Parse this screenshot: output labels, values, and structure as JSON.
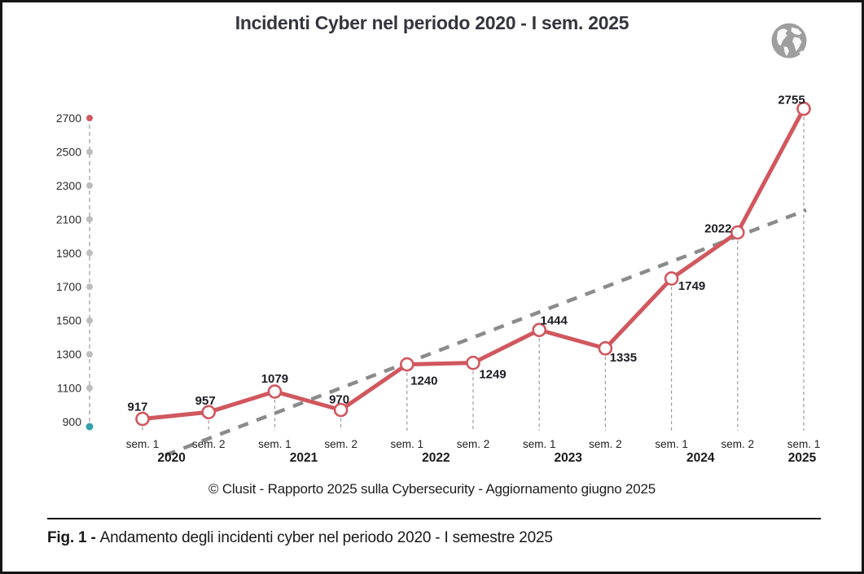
{
  "header": {
    "globe_icon": "globe-icon"
  },
  "footer": {
    "source": "© Clusit - Rapporto 2025 sulla Cybersecurity - Aggiornamento giugno 2025",
    "caption_prefix": "Fig. 1 -",
    "caption_text": "Andamento degli incidenti cyber nel periodo 2020 - I semestre 2025"
  },
  "chart_data": {
    "type": "line",
    "title": "Incidenti Cyber nel periodo 2020 - I sem. 2025",
    "categories": [
      "sem. 1",
      "sem. 2",
      "sem. 1",
      "sem. 2",
      "sem. 1",
      "sem. 2",
      "sem. 1",
      "sem. 2",
      "sem. 1",
      "sem. 2",
      "sem. 1"
    ],
    "year_groups": [
      {
        "label": "2020",
        "from": 0,
        "to": 1
      },
      {
        "label": "2021",
        "from": 2,
        "to": 3
      },
      {
        "label": "2022",
        "from": 4,
        "to": 5
      },
      {
        "label": "2023",
        "from": 6,
        "to": 7
      },
      {
        "label": "2024",
        "from": 8,
        "to": 9
      },
      {
        "label": "2025",
        "from": 10,
        "to": 10
      }
    ],
    "series": [
      {
        "name": "Incidenti cyber",
        "values": [
          917,
          957,
          1079,
          970,
          1240,
          1249,
          1444,
          1335,
          1749,
          2022,
          2755
        ]
      }
    ],
    "trendline": {
      "fit": "linear",
      "style": "dashed"
    },
    "yticks": [
      2700,
      2500,
      2300,
      2100,
      1900,
      1700,
      1500,
      1300,
      1100,
      900
    ],
    "ylim": [
      900,
      2700
    ],
    "grid": false,
    "legend": "none",
    "colors": {
      "series": "#d1575e",
      "marker_fill": "#ffffff",
      "trend": "#8b8b8b",
      "drop_line": "#9b9b9b",
      "tick_dot": "#bdbdbd",
      "tick_dot_top": "#cf5a61",
      "tick_dot_bottom": "#35a0aa",
      "value_label": "#1c1c24",
      "axis_text": "#2c2c2c"
    }
  }
}
